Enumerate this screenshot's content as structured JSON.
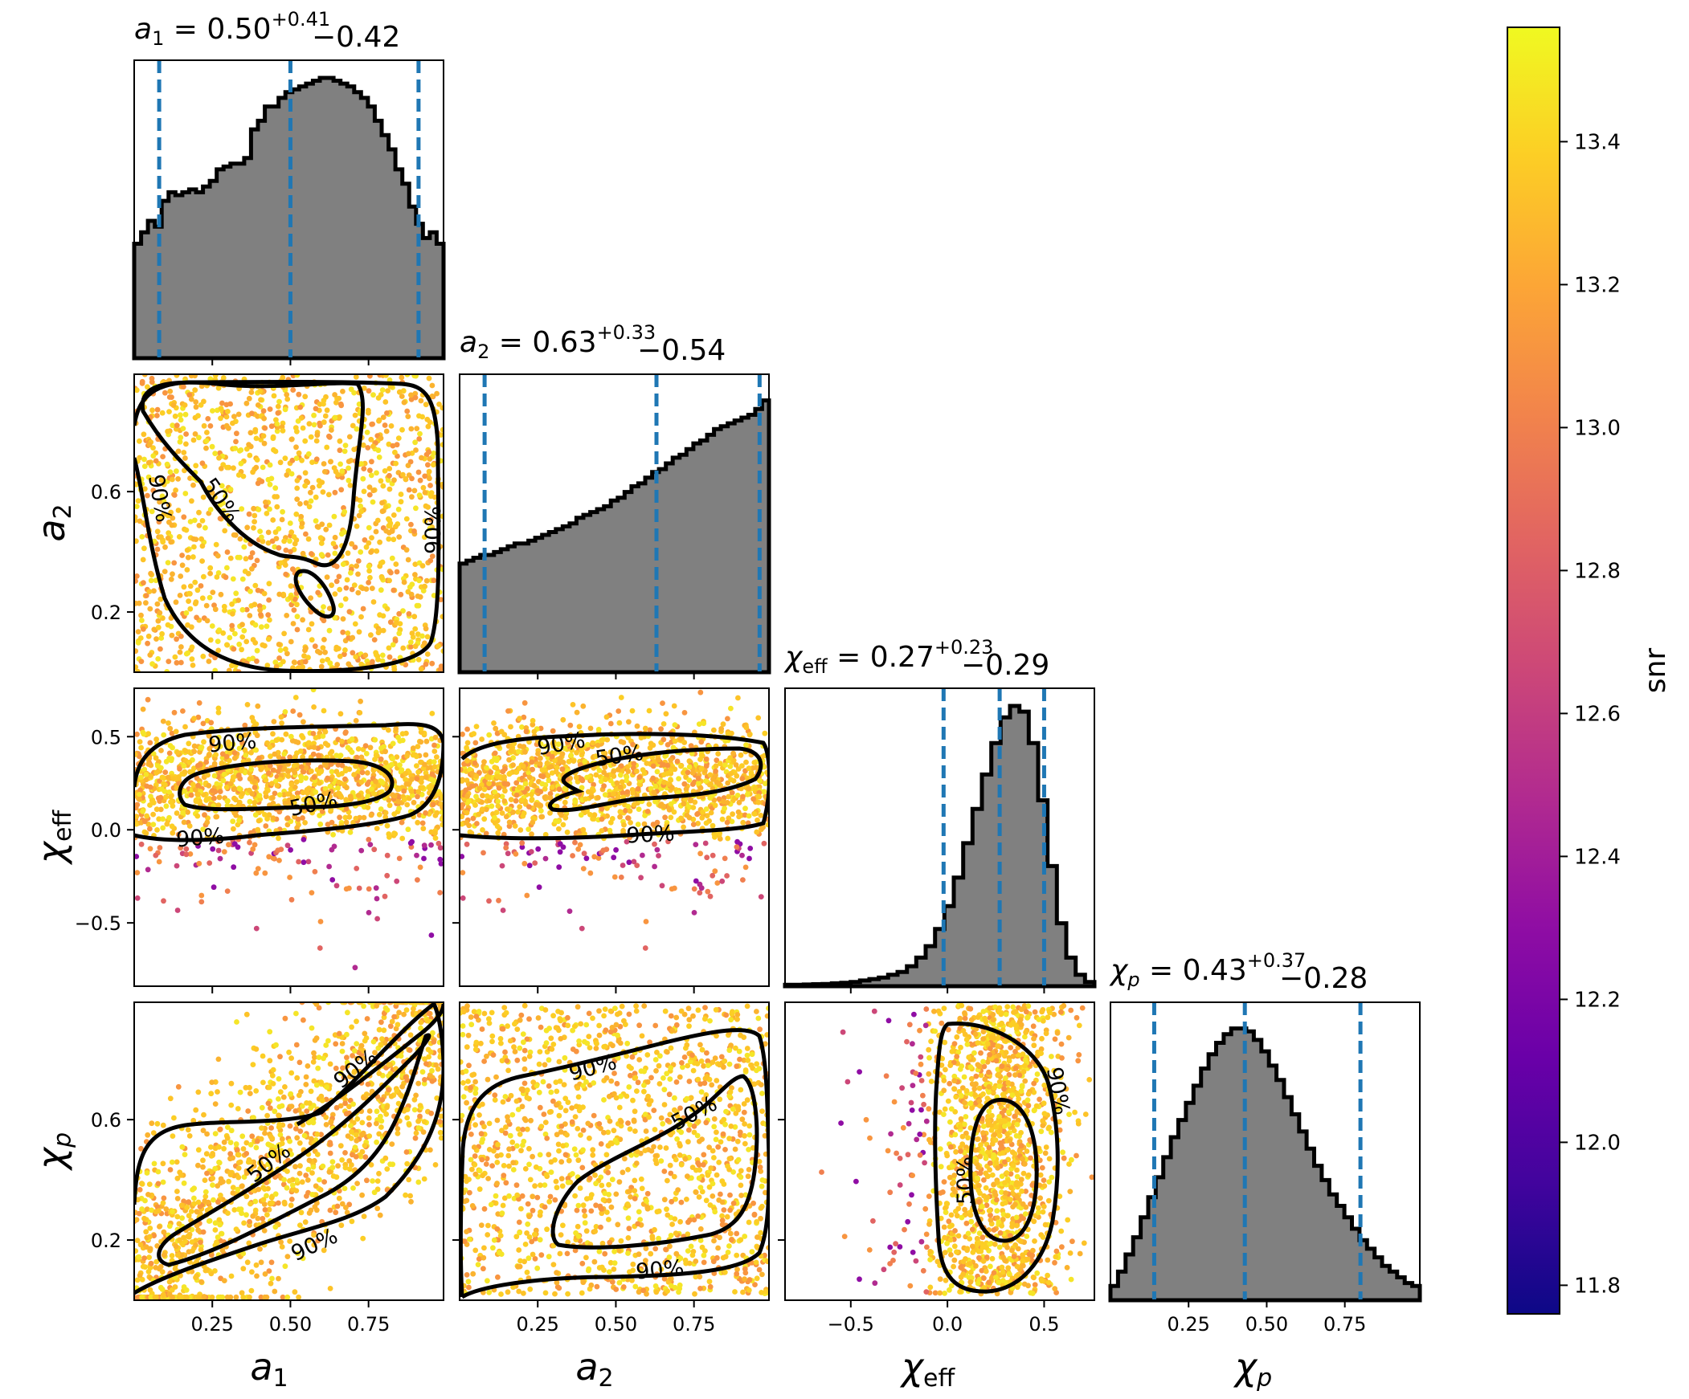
{
  "chart_data": {
    "type": "scatter",
    "kind": "corner plot with marginal histograms, colored scatter and credible-interval contours",
    "parameters": [
      "a_1",
      "a_2",
      "chi_eff",
      "chi_p"
    ],
    "axis_labels": {
      "a_1": {
        "base": "a",
        "sub": "1"
      },
      "a_2": {
        "base": "a",
        "sub": "2"
      },
      "chi_eff": {
        "base": "χ",
        "sub": "eff"
      },
      "chi_p": {
        "base": "χ",
        "sub": "p"
      }
    },
    "ranges": {
      "a_1": [
        0.0,
        0.99
      ],
      "a_2": [
        0.0,
        0.99
      ],
      "chi_eff": [
        -0.84,
        0.76
      ],
      "chi_p": [
        0.0,
        0.99
      ]
    },
    "ticks": {
      "a_1": {
        "values": [
          0.25,
          0.5,
          0.75
        ],
        "labels": [
          "0.25",
          "0.50",
          "0.75"
        ]
      },
      "a_2": {
        "values": [
          0.2,
          0.6
        ],
        "labels": [
          "0.2",
          "0.6"
        ],
        "x_labels": [
          "0.25",
          "0.50",
          "0.75"
        ],
        "x_values": [
          0.25,
          0.5,
          0.75
        ]
      },
      "chi_eff": {
        "values": [
          -0.5,
          0.0,
          0.5
        ],
        "labels": [
          "−0.5",
          "0.0",
          "0.5"
        ]
      },
      "chi_p": {
        "values": [
          0.2,
          0.6
        ],
        "labels": [
          "0.2",
          "0.6"
        ],
        "x_labels": [
          "0.25",
          "0.50",
          "0.75"
        ],
        "x_values": [
          0.25,
          0.5,
          0.75
        ]
      }
    },
    "marginals": {
      "a_1": {
        "title": {
          "base": "a",
          "sub": "1",
          "median": "0.50",
          "plus": "+0.41",
          "minus": "−0.42"
        },
        "quantiles": [
          0.08,
          0.5,
          0.91
        ],
        "hist_max": 1.0,
        "hist": [
          0.4,
          0.44,
          0.48,
          0.46,
          0.55,
          0.58,
          0.57,
          0.58,
          0.59,
          0.58,
          0.6,
          0.62,
          0.66,
          0.67,
          0.68,
          0.68,
          0.7,
          0.8,
          0.83,
          0.88,
          0.88,
          0.91,
          0.93,
          0.94,
          0.95,
          0.96,
          0.97,
          0.98,
          0.98,
          0.97,
          0.96,
          0.95,
          0.93,
          0.91,
          0.88,
          0.83,
          0.78,
          0.73,
          0.66,
          0.61,
          0.53,
          0.47,
          0.42,
          0.44,
          0.4
        ]
      },
      "a_2": {
        "title": {
          "base": "a",
          "sub": "2",
          "median": "0.63",
          "plus": "+0.33",
          "minus": "−0.54"
        },
        "quantiles": [
          0.08,
          0.63,
          0.96
        ],
        "hist_max": 1.0,
        "hist": [
          0.38,
          0.39,
          0.4,
          0.41,
          0.41,
          0.42,
          0.43,
          0.44,
          0.45,
          0.45,
          0.46,
          0.47,
          0.48,
          0.49,
          0.5,
          0.51,
          0.52,
          0.54,
          0.55,
          0.56,
          0.57,
          0.58,
          0.6,
          0.61,
          0.63,
          0.65,
          0.66,
          0.68,
          0.7,
          0.71,
          0.73,
          0.75,
          0.76,
          0.78,
          0.8,
          0.81,
          0.83,
          0.85,
          0.86,
          0.87,
          0.88,
          0.89,
          0.9,
          0.92,
          0.95
        ]
      },
      "chi_eff": {
        "title": {
          "base": "χ",
          "sub": "eff",
          "median": "0.27",
          "plus": "+0.23",
          "minus": "−0.29"
        },
        "quantiles": [
          -0.02,
          0.27,
          0.5
        ],
        "hist_max": 1.0,
        "hist": [
          0.005,
          0.005,
          0.006,
          0.007,
          0.008,
          0.01,
          0.012,
          0.015,
          0.02,
          0.025,
          0.03,
          0.04,
          0.05,
          0.07,
          0.1,
          0.14,
          0.2,
          0.28,
          0.38,
          0.5,
          0.62,
          0.74,
          0.85,
          0.94,
          0.98,
          0.96,
          0.85,
          0.65,
          0.42,
          0.22,
          0.1,
          0.04,
          0.015
        ]
      },
      "chi_p": {
        "title": {
          "base": "χ",
          "sub": "p",
          "median": "0.43",
          "plus": "+0.37",
          "minus": "−0.28"
        },
        "quantiles": [
          0.14,
          0.43,
          0.8
        ],
        "hist_max": 1.0,
        "hist": [
          0.05,
          0.1,
          0.16,
          0.22,
          0.29,
          0.36,
          0.43,
          0.5,
          0.57,
          0.63,
          0.69,
          0.75,
          0.81,
          0.86,
          0.9,
          0.93,
          0.95,
          0.95,
          0.94,
          0.91,
          0.87,
          0.82,
          0.77,
          0.71,
          0.65,
          0.59,
          0.53,
          0.47,
          0.42,
          0.37,
          0.33,
          0.29,
          0.25,
          0.21,
          0.18,
          0.15,
          0.12,
          0.1,
          0.08,
          0.06,
          0.05
        ]
      }
    },
    "scatter_pairs": [
      {
        "x": "a_1",
        "y": "a_2",
        "contour_labels": [
          "50%",
          "90%",
          "90%"
        ]
      },
      {
        "x": "a_1",
        "y": "chi_eff",
        "contour_labels": [
          "50%",
          "90%",
          "90%"
        ]
      },
      {
        "x": "a_2",
        "y": "chi_eff",
        "contour_labels": [
          "50%",
          "90%",
          "90%"
        ]
      },
      {
        "x": "a_1",
        "y": "chi_p",
        "contour_labels": [
          "50%",
          "90%",
          "90%"
        ]
      },
      {
        "x": "a_2",
        "y": "chi_p",
        "contour_labels": [
          "50%",
          "90%",
          "90%"
        ]
      },
      {
        "x": "chi_eff",
        "y": "chi_p",
        "contour_labels": [
          "50%",
          "90%"
        ]
      }
    ],
    "colorbar": {
      "label": "snr",
      "range": [
        11.76,
        13.56
      ],
      "ticks": [
        11.8,
        12.0,
        12.2,
        12.4,
        12.6,
        12.8,
        13.0,
        13.2,
        13.4
      ],
      "tick_labels": [
        "11.8",
        "12.0",
        "12.2",
        "12.4",
        "12.6",
        "12.8",
        "13.0",
        "13.2",
        "13.4"
      ],
      "colormap": "plasma"
    },
    "colors": {
      "histogram_fill": "#808080",
      "histogram_edge": "#000000",
      "quantile_line": "#1f77b4",
      "contour": "#000000"
    }
  }
}
